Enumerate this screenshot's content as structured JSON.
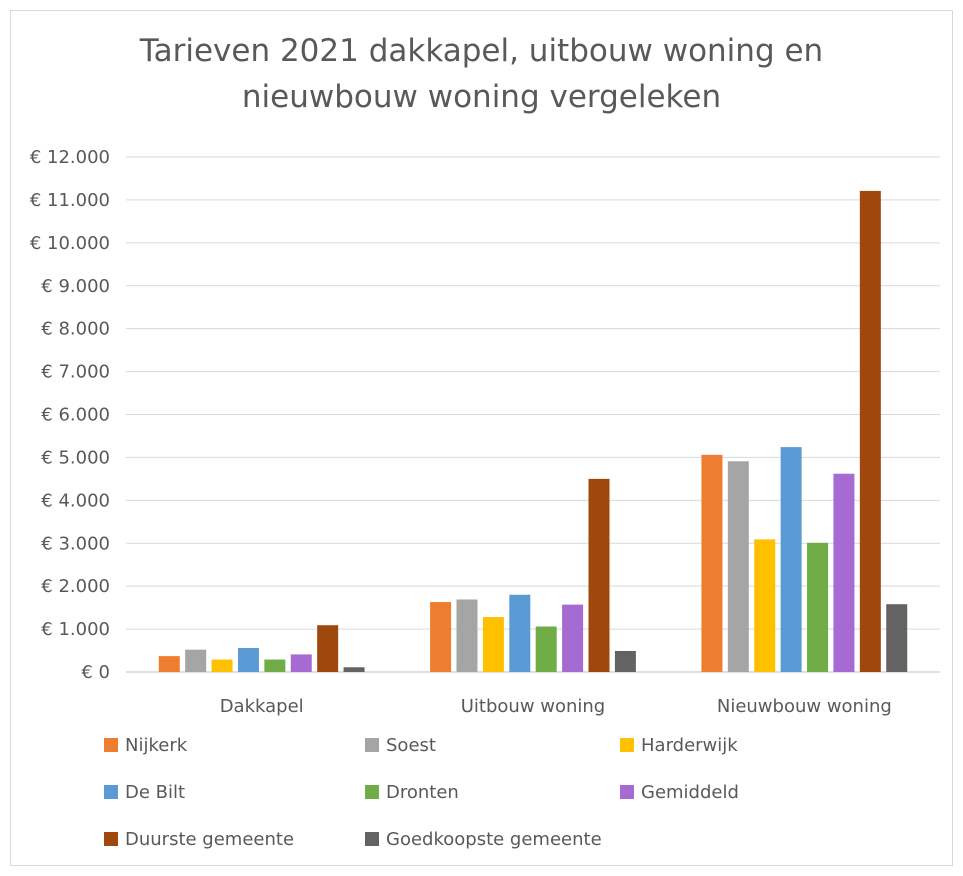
{
  "chart_data": {
    "type": "bar",
    "title": [
      "Tarieven 2021 dakkapel, uitbouw woning en",
      "nieuwbouw woning vergeleken"
    ],
    "categories": [
      "Dakkapel",
      "Uitbouw woning",
      "Nieuwbouw woning"
    ],
    "ylim": [
      0,
      12000
    ],
    "ytick_values": [
      0,
      1000,
      2000,
      3000,
      4000,
      5000,
      6000,
      7000,
      8000,
      9000,
      10000,
      11000,
      12000
    ],
    "ytick_labels": [
      "€ 0",
      "€ 1.000",
      "€ 2.000",
      "€ 3.000",
      "€ 4.000",
      "€ 5.000",
      "€ 6.000",
      "€ 7.000",
      "€ 8.000",
      "€ 9.000",
      "€ 10.000",
      "€ 11.000",
      "€ 12.000"
    ],
    "grid": true,
    "legend_position": "bottom",
    "series": [
      {
        "name": "Nijkerk",
        "color": "#ed7d31",
        "values": [
          370,
          1630,
          5060
        ]
      },
      {
        "name": "Soest",
        "color": "#a5a5a5",
        "values": [
          520,
          1690,
          4910
        ]
      },
      {
        "name": "Harderwijk",
        "color": "#ffc000",
        "values": [
          290,
          1280,
          3090
        ]
      },
      {
        "name": "De Bilt",
        "color": "#5b9bd5",
        "values": [
          560,
          1800,
          5240
        ]
      },
      {
        "name": "Dronten",
        "color": "#70ad47",
        "values": [
          290,
          1060,
          3010
        ]
      },
      {
        "name": "Gemiddeld",
        "color": "#a66bd3",
        "values": [
          410,
          1570,
          4620
        ]
      },
      {
        "name": "Duurste gemeente",
        "color": "#9e480e",
        "values": [
          1090,
          4500,
          11210
        ]
      },
      {
        "name": "Goedkoopste gemeente",
        "color": "#636363",
        "values": [
          110,
          490,
          1580
        ]
      }
    ]
  }
}
